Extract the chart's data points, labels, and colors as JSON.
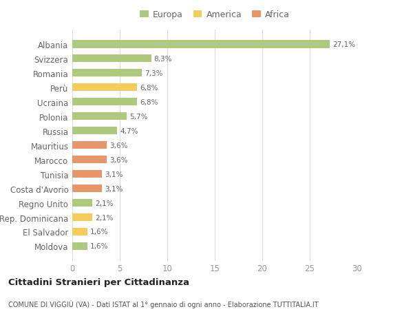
{
  "categories": [
    "Albania",
    "Svizzera",
    "Romania",
    "Perù",
    "Ucraina",
    "Polonia",
    "Russia",
    "Mauritius",
    "Marocco",
    "Tunisia",
    "Costa d'Avorio",
    "Regno Unito",
    "Rep. Dominicana",
    "El Salvador",
    "Moldova"
  ],
  "values": [
    27.1,
    8.3,
    7.3,
    6.8,
    6.8,
    5.7,
    4.7,
    3.6,
    3.6,
    3.1,
    3.1,
    2.1,
    2.1,
    1.6,
    1.6
  ],
  "labels": [
    "27,1%",
    "8,3%",
    "7,3%",
    "6,8%",
    "6,8%",
    "5,7%",
    "4,7%",
    "3,6%",
    "3,6%",
    "3,1%",
    "3,1%",
    "2,1%",
    "2,1%",
    "1,6%",
    "1,6%"
  ],
  "continents": [
    "Europa",
    "Europa",
    "Europa",
    "America",
    "Europa",
    "Europa",
    "Europa",
    "Africa",
    "Africa",
    "Africa",
    "Africa",
    "Europa",
    "America",
    "America",
    "Europa"
  ],
  "colors": {
    "Europa": "#adc97e",
    "America": "#f5cc5a",
    "Africa": "#e8956a"
  },
  "xlim": [
    0,
    30
  ],
  "xticks": [
    0,
    5,
    10,
    15,
    20,
    25,
    30
  ],
  "title": "Cittadini Stranieri per Cittadinanza",
  "subtitle": "COMUNE DI VIGGIÙ (VA) - Dati ISTAT al 1° gennaio di ogni anno - Elaborazione TUTTITALIA.IT",
  "background_color": "#ffffff",
  "grid_color": "#dddddd",
  "label_color": "#666666",
  "tick_color": "#999999"
}
